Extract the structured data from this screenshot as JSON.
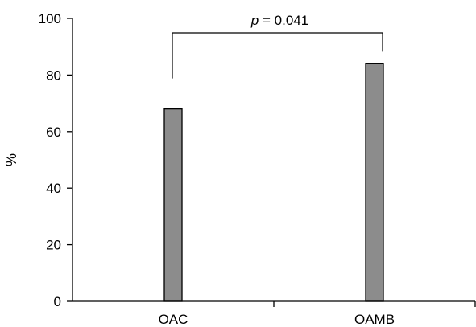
{
  "chart_data": {
    "type": "bar",
    "categories": [
      "OAC",
      "OAMB"
    ],
    "values": [
      68,
      84
    ],
    "ylabel": "%",
    "ylim": [
      0,
      100
    ],
    "yticks": [
      0,
      20,
      40,
      60,
      80,
      100
    ],
    "grid": false,
    "bar_color": "#8c8c8c",
    "annotation": {
      "p_symbol": "p",
      "rest": " = 0.041"
    }
  }
}
